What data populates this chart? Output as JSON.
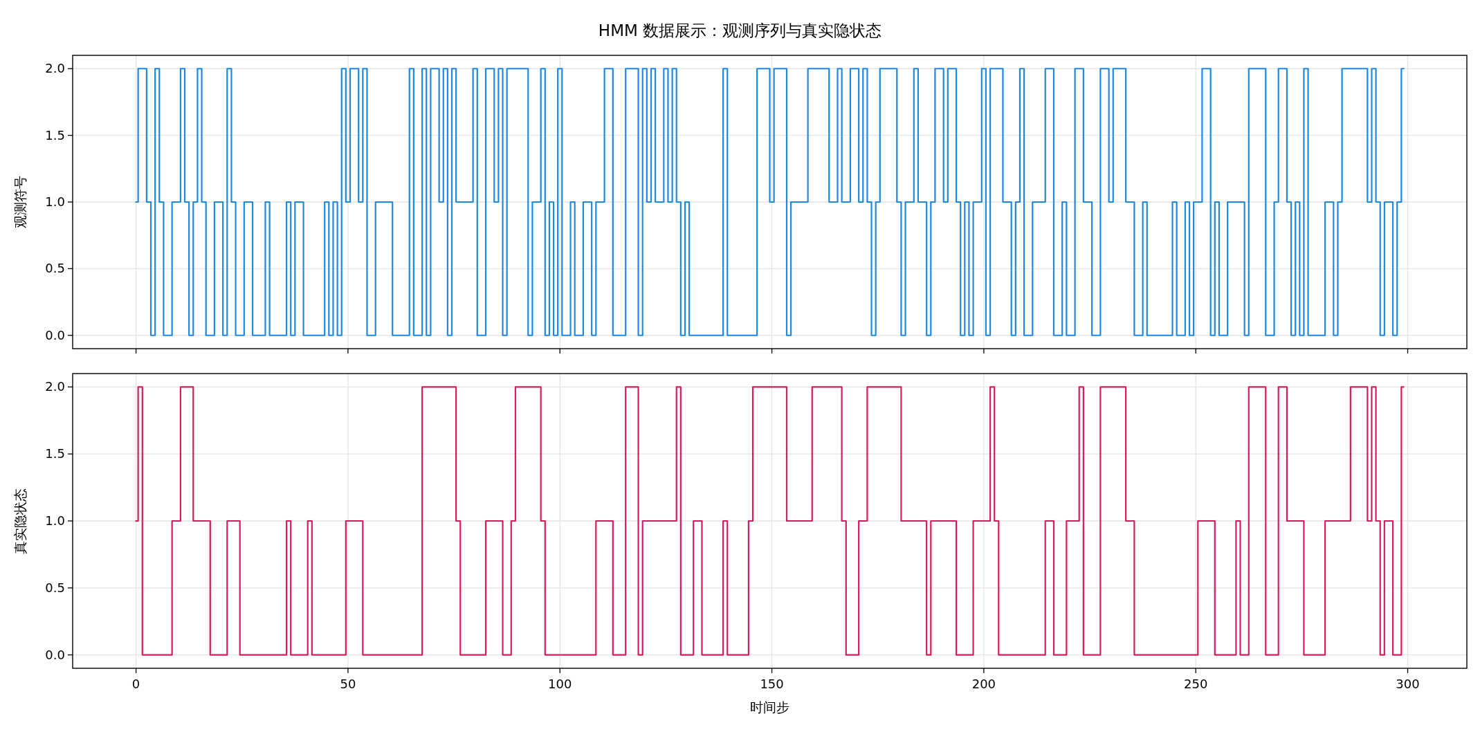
{
  "chart_data": [
    {
      "type": "step",
      "title": "HMM 数据展示：观测序列与真实隐状态",
      "ylabel": "观测符号",
      "color": "#1e88e5",
      "x": [
        0,
        0.5,
        2.5,
        3.5,
        4.5,
        5.5,
        6.5,
        8.5,
        10.5,
        11.5,
        12.5,
        13.5,
        14.5,
        15.5,
        16.5,
        18.5,
        20.5,
        21.5,
        22.5,
        23.5,
        25.5,
        27.5,
        30.5,
        31.5,
        35.5,
        36.5,
        37.5,
        39.5,
        44.5,
        45.5,
        46.5,
        47.5,
        48.5,
        49.5,
        50.5,
        52.5,
        53.5,
        54.5,
        56.5,
        60.5,
        64.5,
        65.5,
        67.5,
        68.5,
        69.5,
        71.5,
        72.5,
        73.5,
        74.5,
        75.5,
        79.5,
        80.5,
        82.5,
        84.5,
        85.5,
        86.5,
        87.5,
        92.5,
        93.5,
        95.5,
        96.5,
        97.5,
        98.5,
        99.5,
        100.5,
        102.5,
        103.5,
        105.5,
        107.5,
        108.5,
        110.5,
        112.5,
        115.5,
        118.5,
        119.5,
        120.5,
        121.5,
        122.5,
        124.5,
        125.5,
        126.5,
        127.5,
        128.5,
        129.5,
        130.5,
        138.5,
        139.5,
        146.5,
        149.5,
        150.5,
        153.5,
        154.5,
        158.5,
        163.5,
        165.5,
        166.5,
        168.5,
        170.5,
        171.5,
        172.5,
        173.5,
        174.5,
        175.5,
        179.5,
        180.5,
        181.5,
        183.5,
        184.5,
        186.5,
        187.5,
        188.5,
        190.5,
        191.5,
        193.5,
        194.5,
        195.5,
        196.5,
        197.5,
        199.5,
        200.5,
        201.5,
        204.5,
        206.5,
        207.5,
        208.5,
        209.5,
        211.5,
        214.5,
        216.5,
        218.5,
        219.5,
        221.5,
        223.5,
        225.5,
        227.5,
        229.5,
        230.5,
        233.5,
        235.5,
        237.5,
        238.5,
        244.5,
        245.5,
        247.5,
        248.5,
        249.5,
        251.5,
        253.5,
        254.5,
        255.5,
        257.5,
        261.5,
        262.5,
        266.5,
        268.5,
        269.5,
        271.5,
        272.5,
        273.5,
        274.5,
        275.5,
        276.5,
        280.5,
        282.5,
        283.5,
        284.5,
        290.5,
        291.5,
        292.5,
        293.5,
        294.5,
        296.5,
        297.5,
        298.5,
        299
      ],
      "values": [
        1,
        2,
        1,
        0,
        2,
        1,
        0,
        1,
        2,
        1,
        0,
        1,
        2,
        1,
        0,
        1,
        0,
        2,
        1,
        0,
        1,
        0,
        1,
        0,
        1,
        0,
        1,
        0,
        1,
        0,
        1,
        0,
        2,
        1,
        2,
        1,
        2,
        0,
        1,
        0,
        2,
        0,
        2,
        0,
        2,
        1,
        2,
        0,
        2,
        1,
        2,
        0,
        2,
        1,
        2,
        0,
        2,
        0,
        1,
        2,
        0,
        1,
        0,
        2,
        0,
        1,
        0,
        1,
        0,
        1,
        2,
        0,
        2,
        0,
        2,
        1,
        2,
        1,
        2,
        1,
        2,
        1,
        0,
        1,
        0,
        2,
        0,
        2,
        1,
        2,
        0,
        1,
        2,
        1,
        2,
        1,
        2,
        1,
        2,
        1,
        0,
        1,
        2,
        1,
        0,
        1,
        2,
        1,
        0,
        1,
        2,
        1,
        2,
        1,
        0,
        1,
        0,
        1,
        2,
        0,
        2,
        1,
        0,
        1,
        2,
        0,
        1,
        2,
        0,
        1,
        0,
        2,
        1,
        0,
        2,
        1,
        2,
        1,
        0,
        1,
        0,
        1,
        0,
        1,
        0,
        1,
        2,
        0,
        1,
        0,
        1,
        0,
        2,
        0,
        1,
        2,
        1,
        0,
        1,
        0,
        2,
        0,
        1,
        0,
        1,
        2,
        1,
        2,
        1,
        0,
        1,
        0,
        1,
        2,
        2
      ],
      "xlim": [
        -14.95,
        313.95
      ],
      "xticks": [
        0,
        50,
        100,
        150,
        200,
        250,
        300
      ],
      "ylim": [
        -0.1,
        2.1
      ],
      "yticks": [
        {
          "value": 0,
          "label": "0.0"
        },
        {
          "value": 0.5,
          "label": "0.5"
        },
        {
          "value": 1,
          "label": "1.0"
        },
        {
          "value": 1.5,
          "label": "1.5"
        },
        {
          "value": 2,
          "label": "2.0"
        }
      ],
      "grid": true,
      "tick_labels": "y"
    },
    {
      "type": "step",
      "xlabel": "时间步",
      "ylabel": "真实隐状态",
      "color": "#d81b60",
      "x": [
        0,
        0.5,
        1.5,
        8.5,
        10.5,
        13.5,
        17.5,
        21.5,
        24.5,
        35.5,
        36.5,
        40.5,
        41.5,
        49.5,
        53.5,
        67.5,
        75.5,
        76.5,
        82.5,
        86.5,
        88.5,
        89.5,
        95.5,
        96.5,
        108.5,
        112.5,
        115.5,
        118.5,
        119.5,
        127.5,
        128.5,
        131.5,
        133.5,
        138.5,
        139.5,
        144.5,
        145.5,
        153.5,
        159.5,
        166.5,
        167.5,
        170.5,
        172.5,
        180.5,
        186.5,
        187.5,
        193.5,
        197.5,
        201.5,
        202.5,
        203.5,
        214.5,
        216.5,
        219.5,
        222.5,
        223.5,
        227.5,
        233.5,
        235.5,
        250.5,
        254.5,
        259.5,
        260.5,
        262.5,
        266.5,
        269.5,
        271.5,
        275.5,
        280.5,
        286.5,
        290.5,
        291.5,
        292.5,
        293.5,
        294.5,
        296.5,
        298.5,
        299
      ],
      "values": [
        1,
        2,
        0,
        1,
        2,
        1,
        0,
        1,
        0,
        1,
        0,
        1,
        0,
        1,
        0,
        2,
        1,
        0,
        1,
        0,
        1,
        2,
        1,
        0,
        1,
        0,
        2,
        0,
        1,
        2,
        0,
        1,
        0,
        1,
        0,
        1,
        2,
        1,
        2,
        1,
        0,
        1,
        2,
        1,
        0,
        1,
        0,
        1,
        2,
        1,
        0,
        1,
        0,
        1,
        2,
        0,
        2,
        1,
        0,
        1,
        0,
        1,
        0,
        2,
        0,
        2,
        1,
        0,
        1,
        2,
        1,
        2,
        1,
        0,
        1,
        0,
        2,
        2
      ],
      "xlim": [
        -14.95,
        313.95
      ],
      "xticks": [
        0,
        50,
        100,
        150,
        200,
        250,
        300
      ],
      "ylim": [
        -0.1,
        2.1
      ],
      "yticks": [
        {
          "value": 0,
          "label": "0.0"
        },
        {
          "value": 0.5,
          "label": "0.5"
        },
        {
          "value": 1,
          "label": "1.0"
        },
        {
          "value": 1.5,
          "label": "1.5"
        },
        {
          "value": 2,
          "label": "2.0"
        }
      ],
      "grid": true
    }
  ]
}
